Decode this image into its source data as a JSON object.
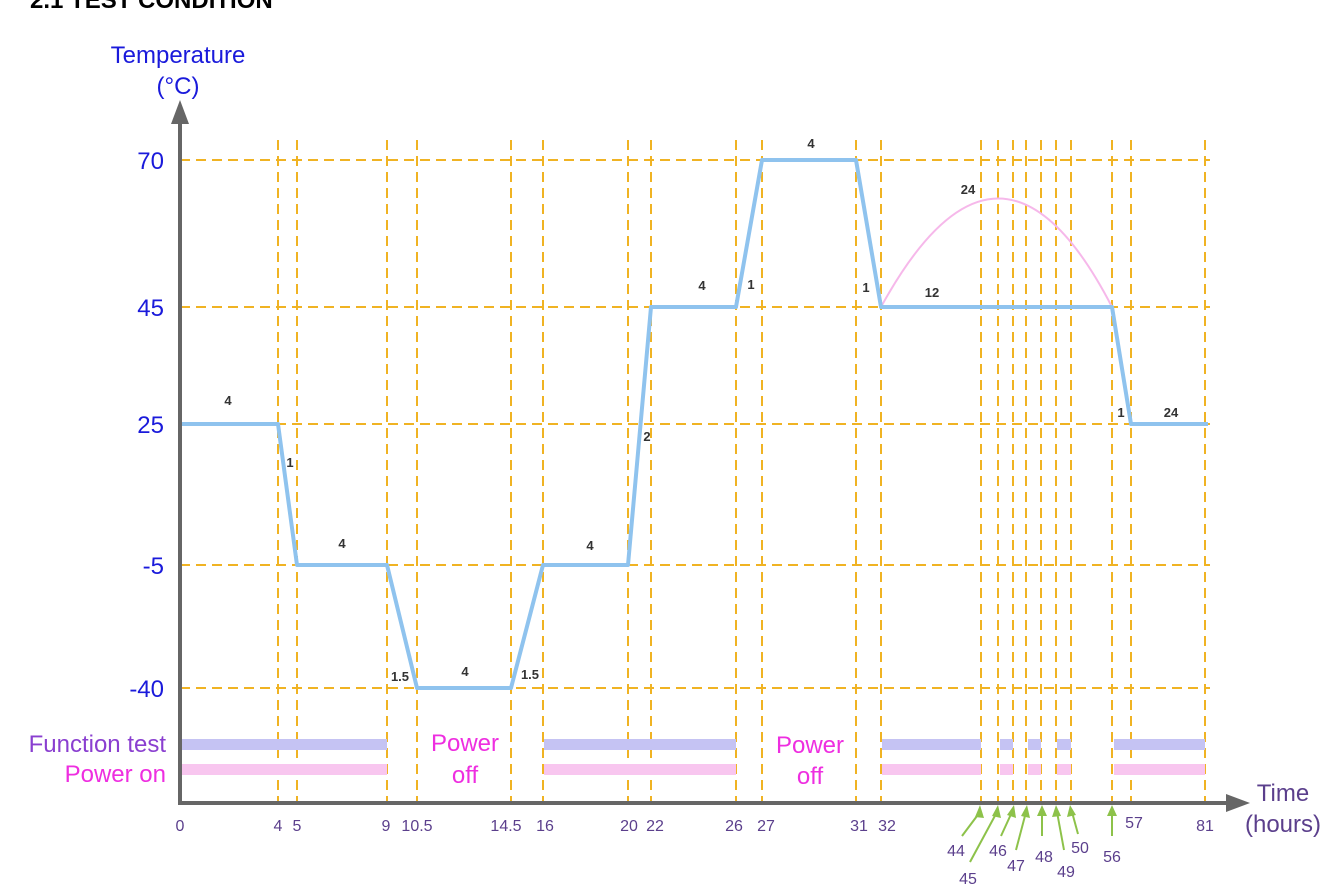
{
  "section_title": "2.1  TEST CONDITION",
  "y_axis": {
    "title_line1": "Temperature",
    "title_line2": "(°C)",
    "ticks": [
      "70",
      "45",
      "25",
      "-5",
      "-40"
    ]
  },
  "x_axis": {
    "title_line1": "Time",
    "title_line2": "(hours)",
    "ticks": [
      "0",
      "4",
      "5",
      "9",
      "10.5",
      "14.5",
      "16",
      "20",
      "22",
      "26",
      "27",
      "31",
      "32",
      "57",
      "81"
    ],
    "arrow_ticks": [
      "44",
      "45",
      "46",
      "47",
      "48",
      "49",
      "50",
      "56"
    ]
  },
  "legend": {
    "function_test": "Function test",
    "power_on": "Power on"
  },
  "power_off_labels": [
    {
      "line1": "Power",
      "line2": "off"
    },
    {
      "line1": "Power",
      "line2": "off"
    }
  ],
  "duration_labels": [
    "4",
    "1",
    "4",
    "1.5",
    "4",
    "1.5",
    "4",
    "2",
    "4",
    "1",
    "4",
    "1",
    "12",
    "24",
    "1",
    "24"
  ],
  "colors": {
    "profile": "#8fc3ee",
    "guides": "#f0b323",
    "axis": "#666666",
    "function_test_bar": "#c5c3f3",
    "power_on_bar": "#f8c6ef",
    "arrows": "#8dc24a",
    "humidity_arc": "#f6b8ea"
  }
}
